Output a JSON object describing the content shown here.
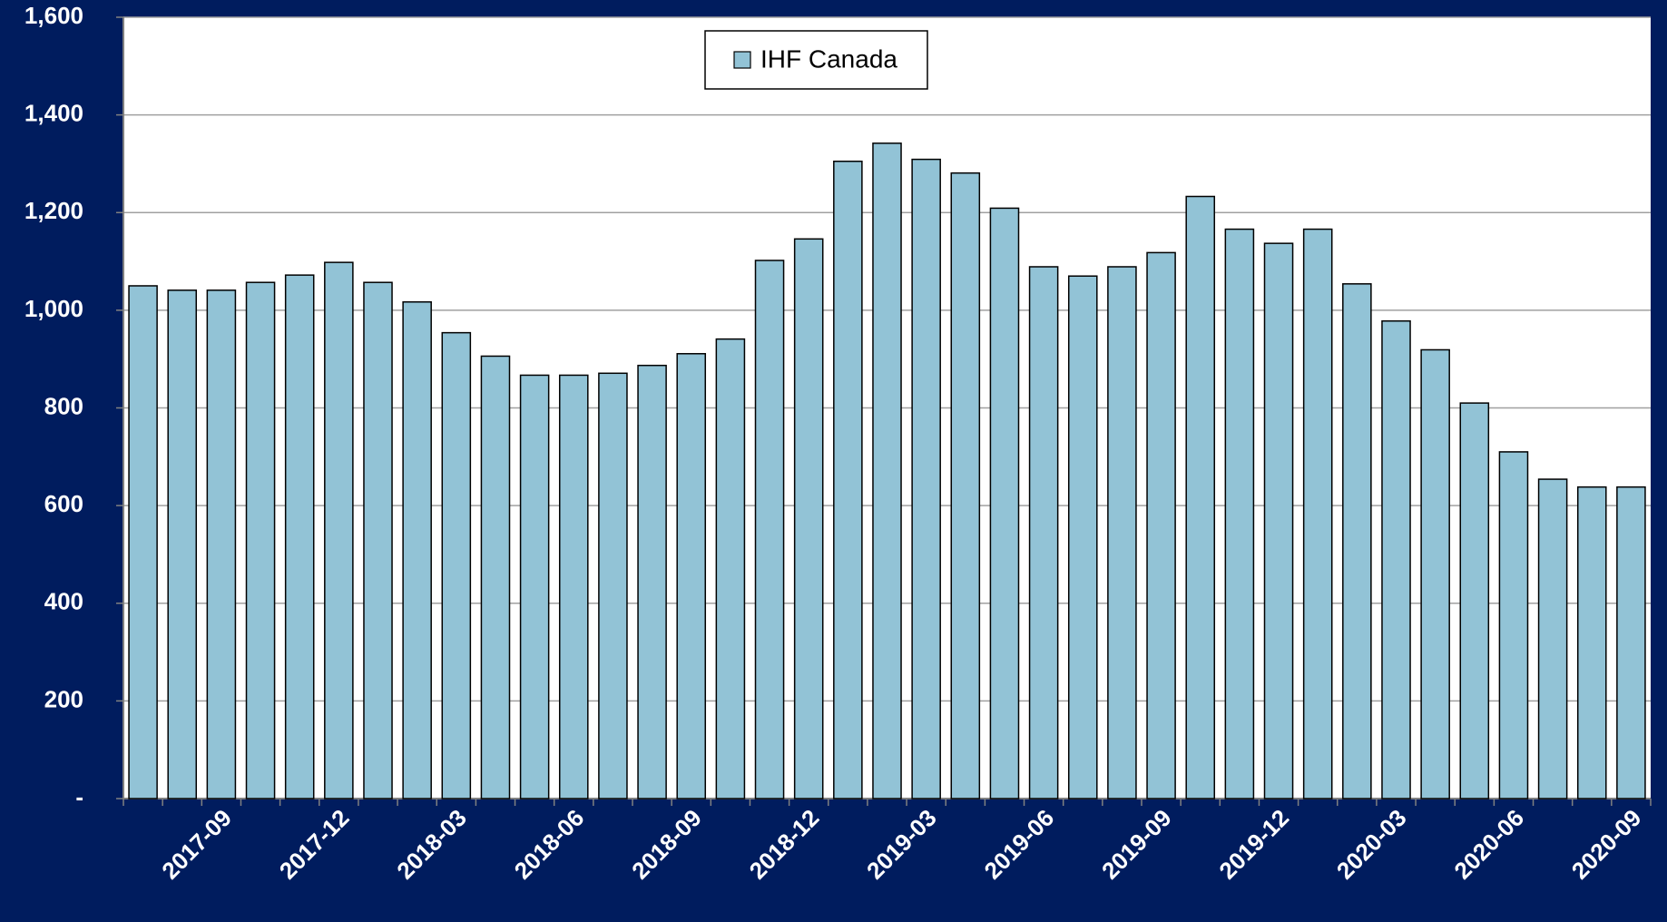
{
  "chart_data": {
    "type": "bar",
    "categories": [
      null,
      null,
      "2017-09",
      null,
      null,
      "2017-12",
      null,
      null,
      "2018-03",
      null,
      null,
      "2018-06",
      null,
      null,
      "2018-09",
      null,
      null,
      "2018-12",
      null,
      null,
      "2019-03",
      null,
      null,
      "2019-06",
      null,
      null,
      "2019-09",
      null,
      null,
      "2019-12",
      null,
      null,
      "2020-03",
      null,
      null,
      "2020-06",
      null,
      null,
      "2020-09"
    ],
    "series": [
      {
        "name": "IHF Canada",
        "color": "#92c3d6",
        "values": [
          1050,
          1041,
          1041,
          1057,
          1072,
          1098,
          1057,
          1017,
          954,
          906,
          867,
          867,
          871,
          887,
          911,
          941,
          1102,
          1146,
          1305,
          1342,
          1309,
          1281,
          1209,
          1089,
          1070,
          1089,
          1118,
          1233,
          1166,
          1137,
          1166,
          1054,
          978,
          919,
          810,
          710,
          654,
          638,
          638
        ]
      }
    ],
    "ylim": [
      0,
      1600
    ],
    "yticks": [
      {
        "value": 0,
        "label": "-"
      },
      200,
      400,
      600,
      800,
      {
        "value": 1000,
        "label": "1,000"
      },
      {
        "value": 1200,
        "label": "1,200"
      },
      {
        "value": 1400,
        "label": "1,400"
      },
      {
        "value": 1600,
        "label": "1,600"
      }
    ],
    "grid": true,
    "legend": "top"
  }
}
